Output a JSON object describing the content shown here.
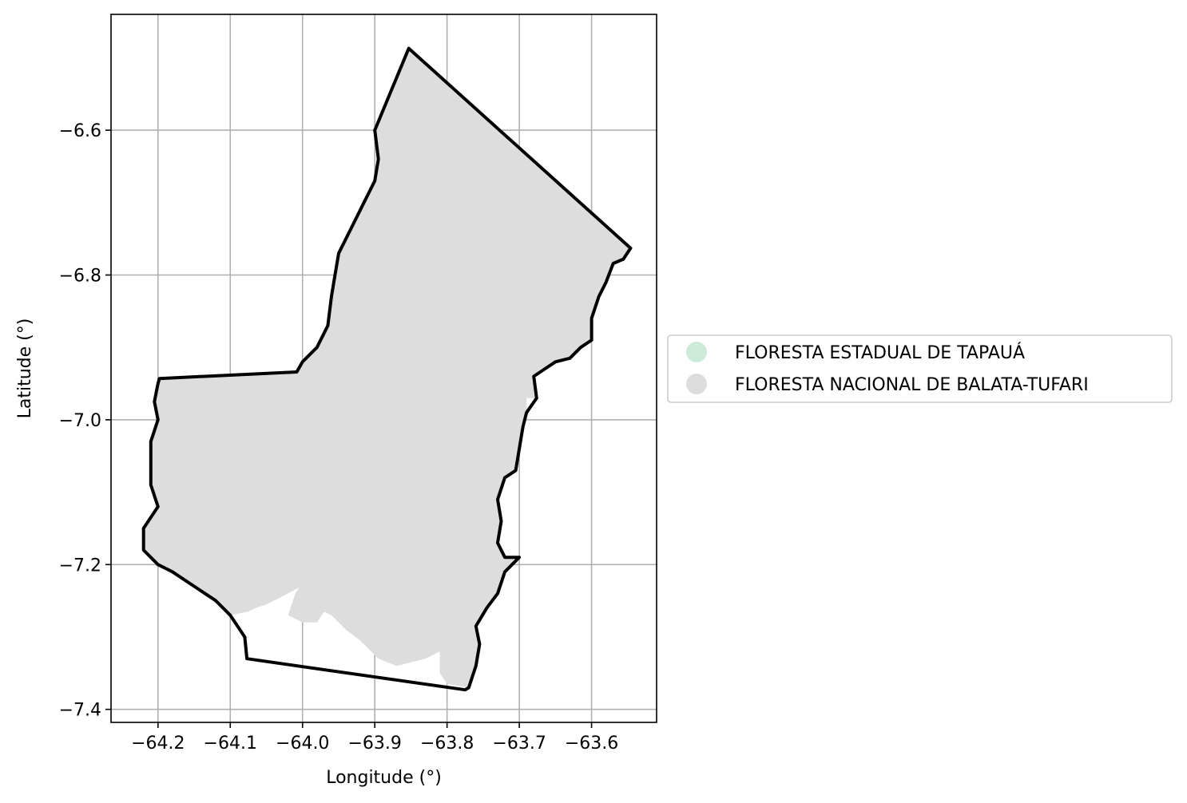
{
  "map": {
    "xlabel": "Longitude (°)",
    "ylabel": "Latitude (°)",
    "xlim": [
      -64.265,
      -63.51
    ],
    "ylim": [
      -7.418,
      -6.44
    ],
    "xticks": [
      -64.2,
      -64.1,
      -64.0,
      -63.9,
      -63.8,
      -63.7,
      -63.6
    ],
    "xtick_labels": [
      "−64.2",
      "−64.1",
      "−64.0",
      "−63.9",
      "−63.8",
      "−63.7",
      "−63.6"
    ],
    "yticks": [
      -6.6,
      -6.8,
      -7.0,
      -7.2,
      -7.4
    ],
    "ytick_labels": [
      "−6.6",
      "−6.8",
      "−7.0",
      "−7.2",
      "−7.4"
    ],
    "grid": true,
    "legend": {
      "placement": "right-outside",
      "entries": [
        {
          "label": "FLORESTA ESTADUAL DE TAPAUÁ",
          "color": "#cdebdb"
        },
        {
          "label": "FLORESTA NACIONAL DE BALATA-TUFARI",
          "color": "#dddddd"
        }
      ]
    },
    "boundary_color": "#000000",
    "grid_color": "#b0b0b0",
    "boundary": [
      [
        -63.853,
        -6.487
      ],
      [
        -63.546,
        -6.763
      ],
      [
        -63.556,
        -6.778
      ],
      [
        -63.57,
        -6.784
      ],
      [
        -63.58,
        -6.81
      ],
      [
        -63.59,
        -6.83
      ],
      [
        -63.6,
        -6.86
      ],
      [
        -63.6,
        -6.89
      ],
      [
        -63.615,
        -6.9
      ],
      [
        -63.63,
        -6.915
      ],
      [
        -63.65,
        -6.92
      ],
      [
        -63.665,
        -6.93
      ],
      [
        -63.68,
        -6.94
      ],
      [
        -63.676,
        -6.97
      ],
      [
        -63.69,
        -6.99
      ],
      [
        -63.695,
        -7.01
      ],
      [
        -63.7,
        -7.04
      ],
      [
        -63.705,
        -7.07
      ],
      [
        -63.72,
        -7.08
      ],
      [
        -63.73,
        -7.11
      ],
      [
        -63.725,
        -7.14
      ],
      [
        -63.73,
        -7.17
      ],
      [
        -63.72,
        -7.19
      ],
      [
        -63.7,
        -7.19
      ],
      [
        -63.72,
        -7.21
      ],
      [
        -63.73,
        -7.24
      ],
      [
        -63.745,
        -7.26
      ],
      [
        -63.76,
        -7.285
      ],
      [
        -63.755,
        -7.31
      ],
      [
        -63.76,
        -7.34
      ],
      [
        -63.77,
        -7.37
      ],
      [
        -63.775,
        -7.373
      ],
      [
        -64.077,
        -7.33
      ],
      [
        -64.08,
        -7.3
      ],
      [
        -64.1,
        -7.27
      ],
      [
        -64.12,
        -7.25
      ],
      [
        -64.15,
        -7.23
      ],
      [
        -64.18,
        -7.21
      ],
      [
        -64.2,
        -7.2
      ],
      [
        -64.22,
        -7.18
      ],
      [
        -64.22,
        -7.15
      ],
      [
        -64.2,
        -7.12
      ],
      [
        -64.21,
        -7.09
      ],
      [
        -64.21,
        -7.06
      ],
      [
        -64.21,
        -7.03
      ],
      [
        -64.2,
        -7.0
      ],
      [
        -64.205,
        -6.975
      ],
      [
        -64.2,
        -6.95
      ],
      [
        -64.198,
        -6.943
      ],
      [
        -64.008,
        -6.934
      ],
      [
        -64.0,
        -6.92
      ],
      [
        -63.98,
        -6.9
      ],
      [
        -63.965,
        -6.87
      ],
      [
        -63.96,
        -6.83
      ],
      [
        -63.955,
        -6.8
      ],
      [
        -63.95,
        -6.77
      ],
      [
        -63.93,
        -6.73
      ],
      [
        -63.915,
        -6.7
      ],
      [
        -63.9,
        -6.67
      ],
      [
        -63.895,
        -6.64
      ],
      [
        -63.9,
        -6.6
      ]
    ],
    "fill": [
      [
        -63.853,
        -6.487
      ],
      [
        -63.546,
        -6.763
      ],
      [
        -63.556,
        -6.778
      ],
      [
        -63.57,
        -6.784
      ],
      [
        -63.58,
        -6.81
      ],
      [
        -63.59,
        -6.83
      ],
      [
        -63.6,
        -6.86
      ],
      [
        -63.6,
        -6.89
      ],
      [
        -63.615,
        -6.9
      ],
      [
        -63.63,
        -6.915
      ],
      [
        -63.65,
        -6.92
      ],
      [
        -63.665,
        -6.93
      ],
      [
        -63.68,
        -6.94
      ],
      [
        -63.676,
        -6.97
      ],
      [
        -63.69,
        -6.99
      ],
      [
        -63.695,
        -7.01
      ],
      [
        -63.7,
        -7.04
      ],
      [
        -63.705,
        -7.07
      ],
      [
        -63.72,
        -7.08
      ],
      [
        -63.73,
        -7.11
      ],
      [
        -63.725,
        -7.14
      ],
      [
        -63.73,
        -7.17
      ],
      [
        -63.72,
        -7.19
      ],
      [
        -63.7,
        -7.19
      ],
      [
        -63.72,
        -7.21
      ],
      [
        -63.73,
        -7.24
      ],
      [
        -63.745,
        -7.26
      ],
      [
        -63.76,
        -7.285
      ],
      [
        -63.755,
        -7.31
      ],
      [
        -63.76,
        -7.34
      ],
      [
        -63.77,
        -7.37
      ],
      [
        -63.8,
        -7.365
      ],
      [
        -63.81,
        -7.35
      ],
      [
        -63.81,
        -7.32
      ],
      [
        -63.83,
        -7.33
      ],
      [
        -63.85,
        -7.335
      ],
      [
        -63.87,
        -7.34
      ],
      [
        -63.895,
        -7.33
      ],
      [
        -63.92,
        -7.305
      ],
      [
        -63.94,
        -7.29
      ],
      [
        -63.96,
        -7.27
      ],
      [
        -63.97,
        -7.265
      ],
      [
        -63.98,
        -7.28
      ],
      [
        -64.0,
        -7.28
      ],
      [
        -64.02,
        -7.27
      ],
      [
        -64.01,
        -7.24
      ],
      [
        -64.005,
        -7.232
      ],
      [
        -64.03,
        -7.245
      ],
      [
        -64.05,
        -7.255
      ],
      [
        -64.065,
        -7.26
      ],
      [
        -64.075,
        -7.265
      ],
      [
        -64.1,
        -7.27
      ],
      [
        -64.12,
        -7.25
      ],
      [
        -64.15,
        -7.23
      ],
      [
        -64.18,
        -7.21
      ],
      [
        -64.2,
        -7.2
      ],
      [
        -64.22,
        -7.18
      ],
      [
        -64.22,
        -7.15
      ],
      [
        -64.2,
        -7.12
      ],
      [
        -64.21,
        -7.09
      ],
      [
        -64.21,
        -7.06
      ],
      [
        -64.21,
        -7.03
      ],
      [
        -64.2,
        -7.0
      ],
      [
        -64.205,
        -6.975
      ],
      [
        -64.2,
        -6.95
      ],
      [
        -64.198,
        -6.943
      ],
      [
        -64.008,
        -6.934
      ],
      [
        -64.0,
        -6.92
      ],
      [
        -63.98,
        -6.9
      ],
      [
        -63.965,
        -6.87
      ],
      [
        -63.96,
        -6.83
      ],
      [
        -63.955,
        -6.8
      ],
      [
        -63.95,
        -6.77
      ],
      [
        -63.93,
        -6.73
      ],
      [
        -63.915,
        -6.7
      ],
      [
        -63.9,
        -6.67
      ],
      [
        -63.895,
        -6.64
      ],
      [
        -63.9,
        -6.6
      ]
    ],
    "notch": [
      [
        -63.69,
        -6.97
      ],
      [
        -63.676,
        -6.97
      ],
      [
        -63.676,
        -6.985
      ],
      [
        -63.69,
        -6.985
      ]
    ]
  }
}
